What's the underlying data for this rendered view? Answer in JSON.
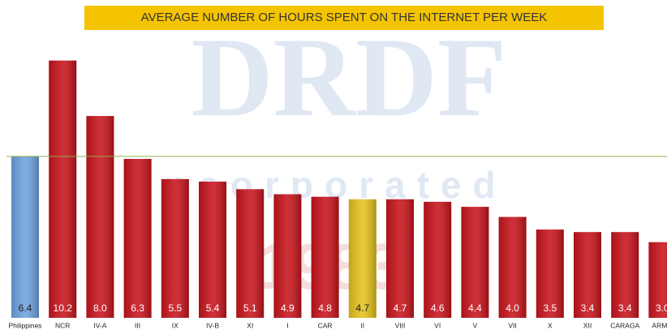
{
  "chart_data": {
    "type": "bar",
    "title": "AVERAGE NUMBER OF HOURS SPENT ON THE INTERNET PER WEEK",
    "watermark": [
      "DRDF",
      "Incorporated",
      "1983"
    ],
    "categories": [
      "Philippines",
      "NCR",
      "IV-A",
      "III",
      "IX",
      "IV-B",
      "XI",
      "I",
      "CAR",
      "II",
      "VIII",
      "VI",
      "V",
      "VII",
      "X",
      "XII",
      "CARAGA",
      "ARMM"
    ],
    "values": [
      6.4,
      10.2,
      8.0,
      6.3,
      5.5,
      5.4,
      5.1,
      4.9,
      4.8,
      4.7,
      4.7,
      4.6,
      4.4,
      4.0,
      3.5,
      3.4,
      3.4,
      3.0
    ],
    "value_labels": [
      "6.4",
      "10.2",
      "8.0",
      "6.3",
      "5.5",
      "5.4",
      "5.1",
      "4.9",
      "4.8",
      "4.7",
      "4.7",
      "4.6",
      "4.4",
      "4.0",
      "3.5",
      "3.4",
      "3.4",
      "3.0"
    ],
    "colors": [
      "#6fa3e0",
      "#c8141c",
      "#c8141c",
      "#c8141c",
      "#c8141c",
      "#c8141c",
      "#c8141c",
      "#c8141c",
      "#c8141c",
      "#e6c21c",
      "#c8141c",
      "#c8141c",
      "#c8141c",
      "#c8141c",
      "#c8141c",
      "#c8141c",
      "#c8141c",
      "#c8141c"
    ],
    "ylim": [
      0,
      12.6
    ]
  }
}
